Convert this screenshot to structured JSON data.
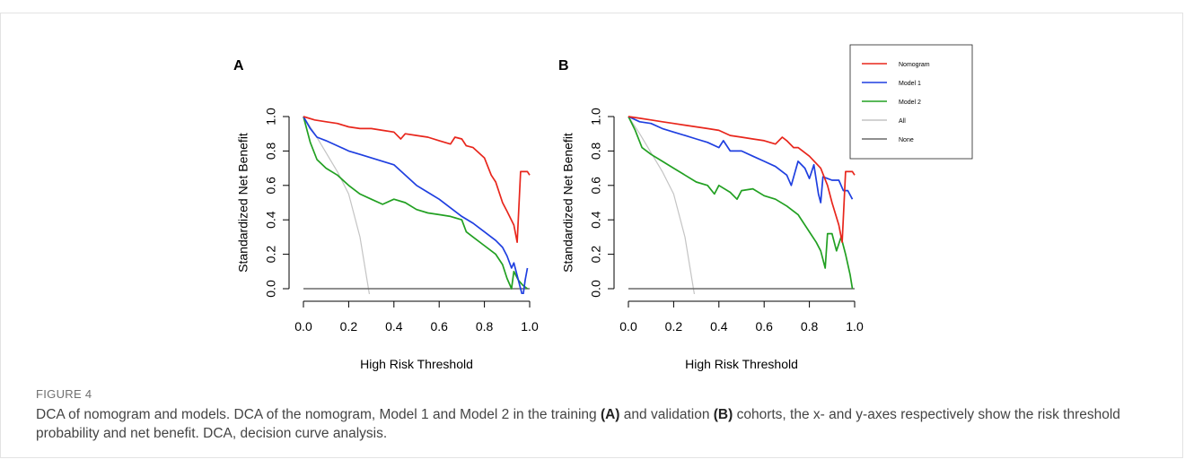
{
  "figure": {
    "label": "FIGURE 4",
    "caption": {
      "part1": "DCA of nomogram and models. DCA of the nomogram, Model 1 and Model 2 in the training ",
      "ref_a": "(A)",
      "part2": " and validation ",
      "ref_b": "(B)",
      "part3": " cohorts, the x- and y-axes respectively show the risk threshold probability and net benefit. DCA, decision curve analysis."
    }
  },
  "legend": {
    "placement": "top-right",
    "items": [
      {
        "name": "Nomogram",
        "color": "#e8261c"
      },
      {
        "name": "Model 1",
        "color": "#1f3fe0"
      },
      {
        "name": "Model 2",
        "color": "#22a022"
      },
      {
        "name": "All",
        "color": "#c4c4c4"
      },
      {
        "name": "None",
        "color": "#6a6a6a"
      }
    ]
  },
  "chart_data": [
    {
      "type": "line",
      "panel_label": "A",
      "xlabel": "High Risk Threshold",
      "ylabel": "Standardized Net Benefit",
      "xlim": [
        0,
        1
      ],
      "ylim": [
        0,
        1
      ],
      "xticks": [
        "0.0",
        "0.2",
        "0.4",
        "0.6",
        "0.8",
        "1.0"
      ],
      "yticks": [
        "0.0",
        "0.2",
        "0.4",
        "0.6",
        "0.8",
        "1.0"
      ],
      "grid": false,
      "series": [
        {
          "name": "Nomogram",
          "color": "#e8261c",
          "points": [
            [
              0,
              1.0
            ],
            [
              0.05,
              0.98
            ],
            [
              0.1,
              0.97
            ],
            [
              0.15,
              0.96
            ],
            [
              0.2,
              0.94
            ],
            [
              0.25,
              0.93
            ],
            [
              0.3,
              0.93
            ],
            [
              0.35,
              0.92
            ],
            [
              0.4,
              0.91
            ],
            [
              0.43,
              0.87
            ],
            [
              0.45,
              0.9
            ],
            [
              0.5,
              0.89
            ],
            [
              0.55,
              0.88
            ],
            [
              0.6,
              0.86
            ],
            [
              0.65,
              0.84
            ],
            [
              0.67,
              0.88
            ],
            [
              0.7,
              0.87
            ],
            [
              0.72,
              0.83
            ],
            [
              0.75,
              0.82
            ],
            [
              0.8,
              0.76
            ],
            [
              0.83,
              0.66
            ],
            [
              0.85,
              0.62
            ],
            [
              0.88,
              0.5
            ],
            [
              0.9,
              0.45
            ],
            [
              0.93,
              0.37
            ],
            [
              0.945,
              0.27
            ],
            [
              0.96,
              0.68
            ],
            [
              0.99,
              0.68
            ],
            [
              1.0,
              0.66
            ]
          ]
        },
        {
          "name": "Model 1",
          "color": "#1f3fe0",
          "points": [
            [
              0,
              1.0
            ],
            [
              0.03,
              0.93
            ],
            [
              0.06,
              0.88
            ],
            [
              0.1,
              0.86
            ],
            [
              0.15,
              0.83
            ],
            [
              0.2,
              0.8
            ],
            [
              0.25,
              0.78
            ],
            [
              0.3,
              0.76
            ],
            [
              0.35,
              0.74
            ],
            [
              0.4,
              0.72
            ],
            [
              0.45,
              0.66
            ],
            [
              0.5,
              0.6
            ],
            [
              0.55,
              0.56
            ],
            [
              0.6,
              0.52
            ],
            [
              0.65,
              0.47
            ],
            [
              0.7,
              0.42
            ],
            [
              0.75,
              0.38
            ],
            [
              0.8,
              0.33
            ],
            [
              0.85,
              0.28
            ],
            [
              0.88,
              0.24
            ],
            [
              0.9,
              0.19
            ],
            [
              0.92,
              0.12
            ],
            [
              0.93,
              0.15
            ],
            [
              0.95,
              0.05
            ],
            [
              0.97,
              -0.05
            ],
            [
              0.98,
              0.05
            ],
            [
              0.99,
              0.12
            ]
          ]
        },
        {
          "name": "Model 2",
          "color": "#22a022",
          "points": [
            [
              0,
              1.0
            ],
            [
              0.03,
              0.85
            ],
            [
              0.06,
              0.75
            ],
            [
              0.1,
              0.7
            ],
            [
              0.15,
              0.66
            ],
            [
              0.2,
              0.6
            ],
            [
              0.25,
              0.55
            ],
            [
              0.3,
              0.52
            ],
            [
              0.35,
              0.49
            ],
            [
              0.4,
              0.52
            ],
            [
              0.45,
              0.5
            ],
            [
              0.5,
              0.46
            ],
            [
              0.55,
              0.44
            ],
            [
              0.6,
              0.43
            ],
            [
              0.65,
              0.42
            ],
            [
              0.7,
              0.4
            ],
            [
              0.72,
              0.33
            ],
            [
              0.75,
              0.3
            ],
            [
              0.8,
              0.25
            ],
            [
              0.85,
              0.2
            ],
            [
              0.88,
              0.14
            ],
            [
              0.9,
              0.06
            ],
            [
              0.92,
              0.0
            ],
            [
              0.93,
              0.1
            ],
            [
              0.95,
              0.05
            ],
            [
              0.97,
              0.02
            ],
            [
              0.99,
              0.0
            ]
          ]
        },
        {
          "name": "All",
          "color": "#c4c4c4",
          "points": [
            [
              0,
              1.0
            ],
            [
              0.05,
              0.9
            ],
            [
              0.1,
              0.79
            ],
            [
              0.15,
              0.68
            ],
            [
              0.2,
              0.55
            ],
            [
              0.25,
              0.3
            ],
            [
              0.3,
              -0.1
            ]
          ]
        },
        {
          "name": "None",
          "color": "#6a6a6a",
          "points": [
            [
              0,
              0
            ],
            [
              1,
              0
            ]
          ]
        }
      ]
    },
    {
      "type": "line",
      "panel_label": "B",
      "xlabel": "High Risk Threshold",
      "ylabel": "Standardized Net Benefit",
      "xlim": [
        0,
        1
      ],
      "ylim": [
        0,
        1
      ],
      "xticks": [
        "0.0",
        "0.2",
        "0.4",
        "0.6",
        "0.8",
        "1.0"
      ],
      "yticks": [
        "0.0",
        "0.2",
        "0.4",
        "0.6",
        "0.8",
        "1.0"
      ],
      "grid": false,
      "series": [
        {
          "name": "Nomogram",
          "color": "#e8261c",
          "points": [
            [
              0,
              1.0
            ],
            [
              0.05,
              0.99
            ],
            [
              0.1,
              0.98
            ],
            [
              0.15,
              0.97
            ],
            [
              0.2,
              0.96
            ],
            [
              0.25,
              0.95
            ],
            [
              0.3,
              0.94
            ],
            [
              0.35,
              0.93
            ],
            [
              0.4,
              0.92
            ],
            [
              0.45,
              0.89
            ],
            [
              0.5,
              0.88
            ],
            [
              0.55,
              0.87
            ],
            [
              0.6,
              0.86
            ],
            [
              0.65,
              0.84
            ],
            [
              0.68,
              0.88
            ],
            [
              0.7,
              0.86
            ],
            [
              0.73,
              0.82
            ],
            [
              0.75,
              0.82
            ],
            [
              0.8,
              0.77
            ],
            [
              0.85,
              0.7
            ],
            [
              0.88,
              0.6
            ],
            [
              0.9,
              0.5
            ],
            [
              0.93,
              0.37
            ],
            [
              0.945,
              0.27
            ],
            [
              0.96,
              0.68
            ],
            [
              0.99,
              0.68
            ],
            [
              1.0,
              0.66
            ]
          ]
        },
        {
          "name": "Model 1",
          "color": "#1f3fe0",
          "points": [
            [
              0,
              1.0
            ],
            [
              0.05,
              0.97
            ],
            [
              0.1,
              0.96
            ],
            [
              0.15,
              0.93
            ],
            [
              0.2,
              0.91
            ],
            [
              0.25,
              0.89
            ],
            [
              0.3,
              0.87
            ],
            [
              0.35,
              0.85
            ],
            [
              0.4,
              0.82
            ],
            [
              0.42,
              0.86
            ],
            [
              0.45,
              0.8
            ],
            [
              0.5,
              0.8
            ],
            [
              0.55,
              0.77
            ],
            [
              0.6,
              0.74
            ],
            [
              0.65,
              0.71
            ],
            [
              0.7,
              0.66
            ],
            [
              0.72,
              0.6
            ],
            [
              0.75,
              0.74
            ],
            [
              0.78,
              0.7
            ],
            [
              0.8,
              0.64
            ],
            [
              0.82,
              0.72
            ],
            [
              0.84,
              0.55
            ],
            [
              0.85,
              0.5
            ],
            [
              0.86,
              0.65
            ],
            [
              0.9,
              0.63
            ],
            [
              0.93,
              0.63
            ],
            [
              0.95,
              0.57
            ],
            [
              0.97,
              0.57
            ],
            [
              0.99,
              0.52
            ]
          ]
        },
        {
          "name": "Model 2",
          "color": "#22a022",
          "points": [
            [
              0,
              1.0
            ],
            [
              0.03,
              0.92
            ],
            [
              0.06,
              0.82
            ],
            [
              0.1,
              0.78
            ],
            [
              0.15,
              0.74
            ],
            [
              0.2,
              0.7
            ],
            [
              0.25,
              0.66
            ],
            [
              0.3,
              0.62
            ],
            [
              0.35,
              0.6
            ],
            [
              0.38,
              0.55
            ],
            [
              0.4,
              0.6
            ],
            [
              0.45,
              0.56
            ],
            [
              0.48,
              0.52
            ],
            [
              0.5,
              0.57
            ],
            [
              0.55,
              0.58
            ],
            [
              0.6,
              0.54
            ],
            [
              0.65,
              0.52
            ],
            [
              0.7,
              0.48
            ],
            [
              0.75,
              0.43
            ],
            [
              0.8,
              0.33
            ],
            [
              0.83,
              0.27
            ],
            [
              0.85,
              0.22
            ],
            [
              0.87,
              0.12
            ],
            [
              0.88,
              0.32
            ],
            [
              0.9,
              0.32
            ],
            [
              0.92,
              0.22
            ],
            [
              0.94,
              0.3
            ],
            [
              0.96,
              0.2
            ],
            [
              0.98,
              0.08
            ],
            [
              0.99,
              0.0
            ]
          ]
        },
        {
          "name": "All",
          "color": "#c4c4c4",
          "points": [
            [
              0,
              1.0
            ],
            [
              0.05,
              0.9
            ],
            [
              0.1,
              0.79
            ],
            [
              0.15,
              0.68
            ],
            [
              0.2,
              0.55
            ],
            [
              0.25,
              0.3
            ],
            [
              0.3,
              -0.1
            ]
          ]
        },
        {
          "name": "None",
          "color": "#6a6a6a",
          "points": [
            [
              0,
              0
            ],
            [
              1,
              0
            ]
          ]
        }
      ]
    }
  ]
}
